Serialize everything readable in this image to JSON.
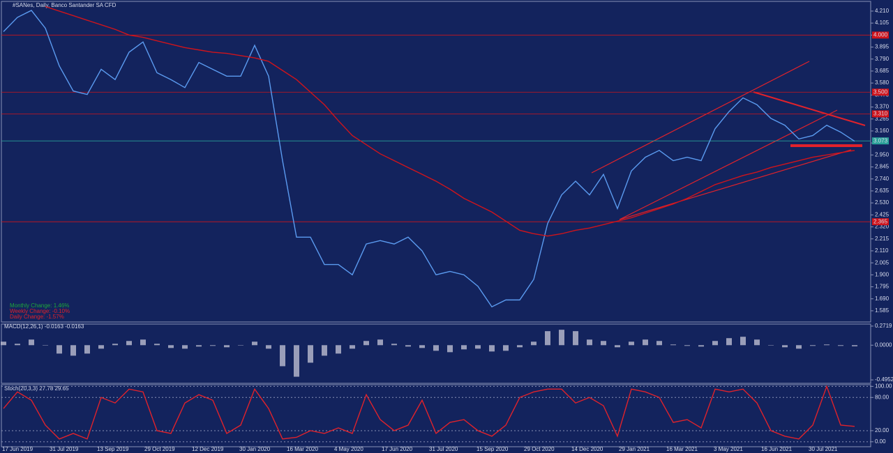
{
  "header": {
    "title": "#SANes, Daily, Banco Santander SA CFD"
  },
  "chart_data": [
    {
      "type": "line",
      "annotations": [
        {
          "text": "Monthly Change: 1.46%",
          "color": "#1fa83a"
        },
        {
          "text": "Weekly Change: -0.10%",
          "color": "#e0222b"
        },
        {
          "text": "Daily Change: -1.57%",
          "color": "#e0222b"
        }
      ],
      "xtick_labels": [
        "17 Jun 2019",
        "31 Jul 2019",
        "13 Sep 2019",
        "29 Oct 2019",
        "12 Dec 2019",
        "30 Jan 2020",
        "16 Mar 2020",
        "4 May 2020",
        "17 Jun 2020",
        "31 Jul 2020",
        "15 Sep 2020",
        "29 Oct 2020",
        "14 Dec 2020",
        "29 Jan 2021",
        "16 Mar 2021",
        "3 May 2021",
        "16 Jun 2021",
        "30 Jul 2021"
      ],
      "series": [
        {
          "color": "#5b9bf0",
          "values": [
            4.03,
            4.155,
            4.216,
            4.06,
            3.73,
            3.51,
            3.48,
            3.7,
            3.61,
            3.85,
            3.94,
            3.67,
            3.61,
            3.54,
            3.76,
            3.7,
            3.64,
            3.64,
            3.91,
            3.64,
            2.9,
            2.23,
            2.23,
            1.99,
            1.99,
            1.9,
            2.17,
            2.2,
            2.17,
            2.23,
            2.11,
            1.9,
            1.93,
            1.9,
            1.8,
            1.62,
            1.68,
            1.68,
            1.86,
            2.35,
            2.6,
            2.72,
            2.6,
            2.78,
            2.48,
            2.81,
            2.93,
            2.99,
            2.9,
            2.93,
            2.9,
            3.18,
            3.33,
            3.45,
            3.39,
            3.27,
            3.21,
            3.09,
            3.12,
            3.21,
            3.15,
            3.07
          ]
        },
        {
          "color": "#d0141b",
          "values": [
            null,
            null,
            null,
            4.25,
            4.21,
            4.17,
            4.13,
            4.09,
            4.05,
            4.0,
            3.98,
            3.95,
            3.92,
            3.89,
            3.87,
            3.85,
            3.84,
            3.82,
            3.8,
            3.77,
            3.69,
            3.61,
            3.5,
            3.39,
            3.25,
            3.12,
            3.04,
            2.96,
            2.9,
            2.84,
            2.78,
            2.72,
            2.65,
            2.57,
            2.51,
            2.45,
            2.37,
            2.29,
            2.26,
            2.24,
            2.26,
            2.29,
            2.31,
            2.34,
            2.37,
            2.4,
            2.44,
            2.48,
            2.52,
            2.57,
            2.63,
            2.69,
            2.73,
            2.77,
            2.8,
            2.84,
            2.87,
            2.9,
            2.93,
            2.95,
            2.97,
            2.99
          ]
        }
      ],
      "levels": [
        {
          "value": 4.0,
          "label": "4.000"
        },
        {
          "value": 3.5,
          "label": "3.500"
        },
        {
          "value": 3.31,
          "label": "3.310"
        },
        {
          "value": 2.365,
          "label": "2.365"
        }
      ],
      "level_color": "#d0141b",
      "current": {
        "value": 3.073,
        "label": "3.073"
      },
      "current_color": "#2aa198",
      "ylim": [
        1.487,
        4.295
      ],
      "yticks": [
        {
          "value": 4.21,
          "label": "4.210"
        },
        {
          "value": 4.105,
          "label": "4.105"
        },
        {
          "value": 4.0,
          "label": "4.000"
        },
        {
          "value": 3.895,
          "label": "3.895"
        },
        {
          "value": 3.79,
          "label": "3.790"
        },
        {
          "value": 3.685,
          "label": "3.685"
        },
        {
          "value": 3.58,
          "label": "3.580"
        },
        {
          "value": 3.475,
          "label": "3.475"
        },
        {
          "value": 3.37,
          "label": "3.370"
        },
        {
          "value": 3.265,
          "label": "3.265"
        },
        {
          "value": 3.16,
          "label": "3.160"
        },
        {
          "value": 3.055,
          "label": "3.055"
        },
        {
          "value": 2.95,
          "label": "2.950"
        },
        {
          "value": 2.845,
          "label": "2.845"
        },
        {
          "value": 2.74,
          "label": "2.740"
        },
        {
          "value": 2.635,
          "label": "2.635"
        },
        {
          "value": 2.53,
          "label": "2.530"
        },
        {
          "value": 2.425,
          "label": "2.425"
        },
        {
          "value": 2.32,
          "label": "2.320"
        },
        {
          "value": 2.215,
          "label": "2.215"
        },
        {
          "value": 2.11,
          "label": "2.110"
        },
        {
          "value": 2.005,
          "label": "2.005"
        },
        {
          "value": 1.9,
          "label": "1.900"
        },
        {
          "value": 1.795,
          "label": "1.795"
        },
        {
          "value": 1.69,
          "label": "1.690"
        },
        {
          "value": 1.585,
          "label": "1.585"
        }
      ],
      "grid": false
    },
    {
      "type": "bar",
      "title": "MACD(12,26,1) -0.0163 -0.0163",
      "color": "#c8c8d8",
      "values": [
        0.05,
        0.02,
        0.08,
        0.0,
        -0.12,
        -0.15,
        -0.12,
        -0.05,
        0.02,
        0.06,
        0.08,
        0.02,
        -0.04,
        -0.05,
        -0.02,
        -0.01,
        -0.03,
        0.0,
        0.05,
        -0.05,
        -0.3,
        -0.45,
        -0.25,
        -0.15,
        -0.12,
        -0.05,
        0.06,
        0.08,
        0.02,
        -0.02,
        -0.04,
        -0.08,
        -0.1,
        -0.06,
        -0.05,
        -0.09,
        -0.08,
        -0.03,
        0.05,
        0.2,
        0.22,
        0.2,
        0.08,
        0.06,
        -0.03,
        0.05,
        0.08,
        0.06,
        0.01,
        -0.01,
        -0.02,
        0.06,
        0.1,
        0.12,
        0.08,
        0.0,
        -0.03,
        -0.05,
        -0.01,
        0.01,
        -0.01,
        -0.016
      ],
      "ylim": [
        -0.544,
        0.301
      ],
      "yticks": [
        {
          "value": 0.2719,
          "label": "0.2719"
        },
        {
          "value": 0,
          "label": "0.0000"
        },
        {
          "value": -0.4952,
          "label": "-0.4952"
        }
      ],
      "grid": false
    },
    {
      "type": "line",
      "title": "Stoch(20,3,3) 27.78 29.65",
      "series": [
        {
          "color": "#e0222b",
          "values": [
            60,
            90,
            75,
            30,
            5,
            15,
            5,
            80,
            70,
            95,
            90,
            20,
            15,
            70,
            85,
            75,
            15,
            30,
            95,
            60,
            5,
            8,
            20,
            15,
            25,
            15,
            85,
            40,
            20,
            30,
            75,
            15,
            35,
            40,
            20,
            10,
            30,
            80,
            90,
            95,
            95,
            70,
            80,
            65,
            10,
            95,
            90,
            80,
            35,
            40,
            25,
            95,
            90,
            95,
            70,
            20,
            10,
            5,
            30,
            100,
            30,
            27.78
          ]
        }
      ],
      "ylim": [
        -9,
        103
      ],
      "yticks": [
        {
          "value": 100,
          "label": "100.00"
        },
        {
          "value": 80,
          "label": "80.00"
        },
        {
          "value": 20,
          "label": "20.00"
        },
        {
          "value": 0,
          "label": "0.00"
        }
      ],
      "grid": true
    }
  ]
}
